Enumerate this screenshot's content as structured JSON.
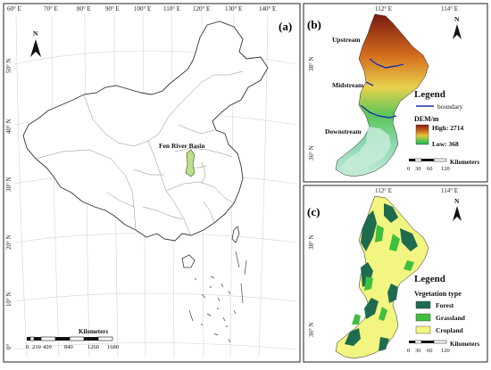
{
  "panel_a": {
    "letter": "(a)",
    "top_lon_labels": [
      "60° E",
      "70° E",
      "80° E",
      "90° E",
      "100° E",
      "110° E",
      "120° E",
      "130° E",
      "140° E"
    ],
    "left_lat_labels": [
      "50° N",
      "40° N",
      "30° N",
      "20° N",
      "10° N",
      "0°"
    ],
    "basin_label": "Fen River Basin",
    "north": "N",
    "scale": {
      "unit": "Kilometers",
      "ticks": [
        "0",
        "210",
        "420",
        "840",
        "1260",
        "1680"
      ]
    }
  },
  "panel_b": {
    "letter": "(b)",
    "top_lon_labels": [
      "112° E",
      "114° E"
    ],
    "left_lat_labels": [
      "38° N",
      "36° N"
    ],
    "north": "N",
    "regions": {
      "upstream": "Upstream",
      "midstream": "Midstream",
      "downstream": "Downstream"
    },
    "legend": {
      "title": "Legend",
      "boundary": "boundary",
      "dem_title": "DEM/m",
      "high": "High: 2714",
      "low": "Low: 368"
    },
    "scale": {
      "unit": "Kilometers",
      "ticks": [
        "0",
        "30",
        "60",
        "120"
      ]
    }
  },
  "panel_c": {
    "letter": "(c)",
    "top_lon_labels": [
      "112° E",
      "114° E"
    ],
    "left_lat_labels": [
      "38° N",
      "36° N"
    ],
    "north": "N",
    "legend": {
      "title": "Legend",
      "subtitle": "Vegetation type",
      "items": [
        "Forest",
        "Grassland",
        "Cropland"
      ]
    },
    "scale": {
      "unit": "Kilometers",
      "ticks": [
        "0",
        "30",
        "60",
        "120"
      ]
    }
  },
  "colors": {
    "forest": "#1f6b4f",
    "grassland": "#3fbf3f",
    "cropland": "#f2f580",
    "boundary": "#1a2faa",
    "dem_high": "#8a1a10",
    "dem_mid": "#e3a12a",
    "dem_low": "#29ad52",
    "dem_lowest": "#c6ecd8"
  }
}
